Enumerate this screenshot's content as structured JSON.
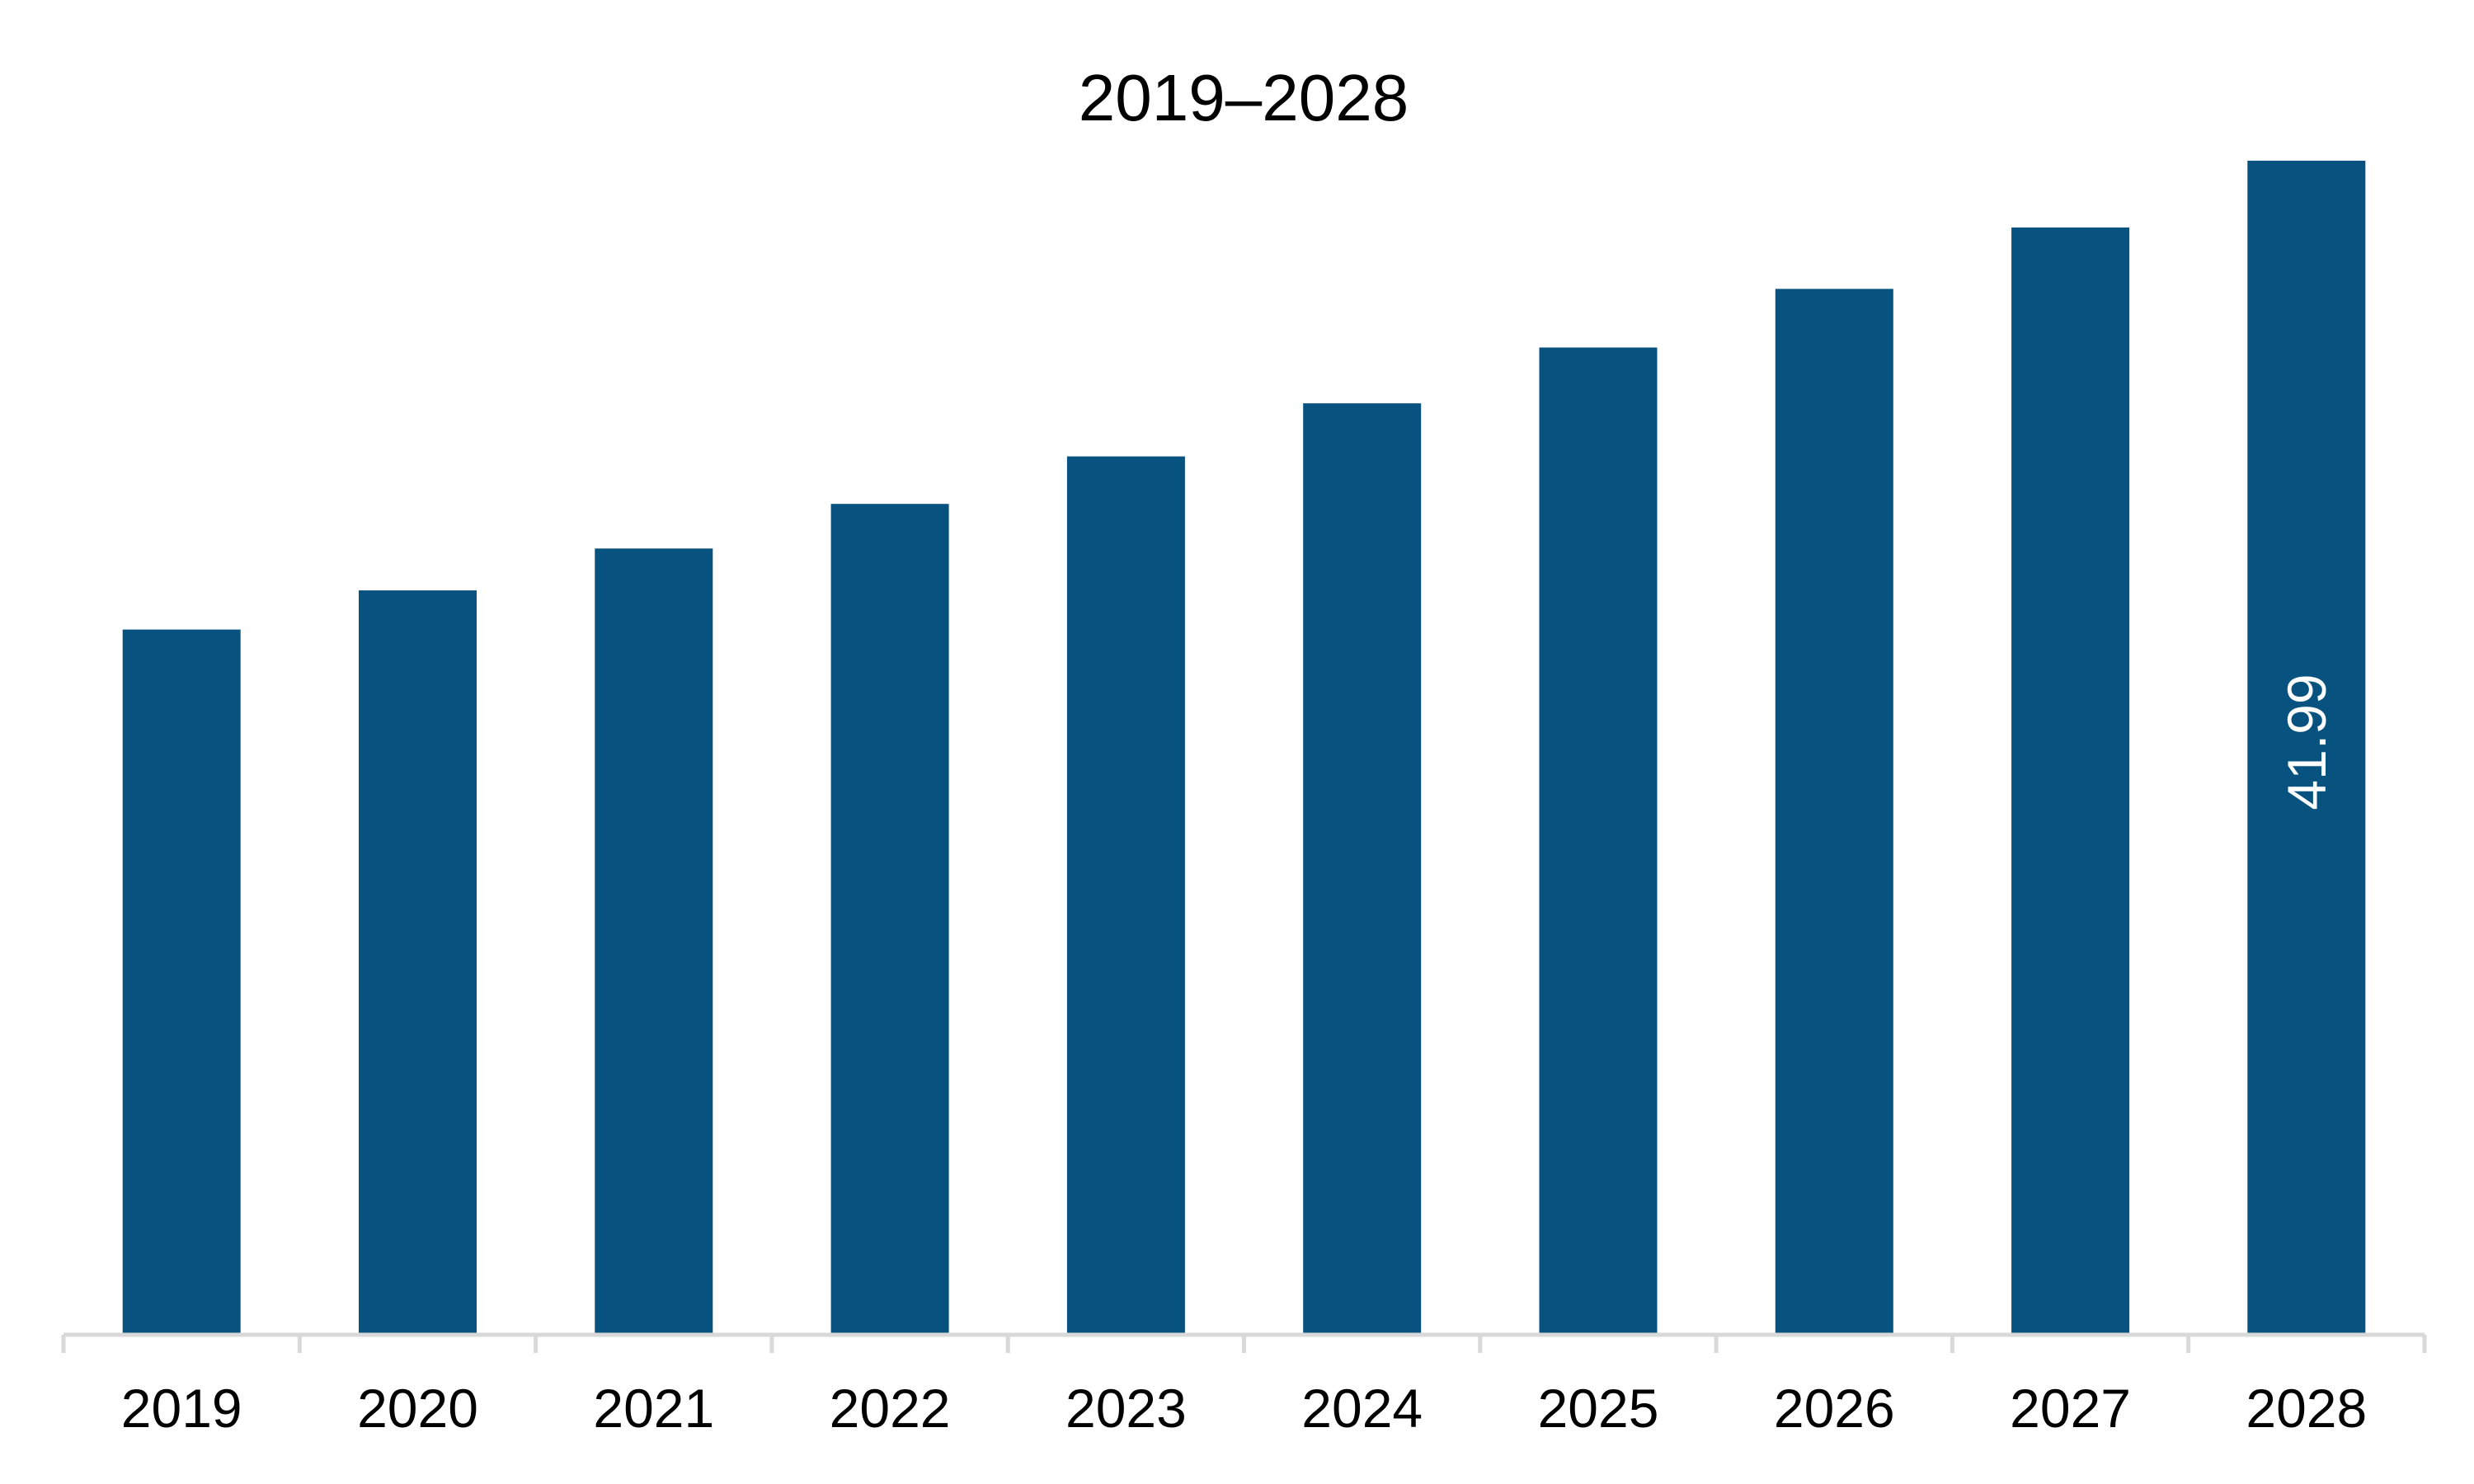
{
  "chart_data": {
    "type": "bar",
    "title": "2019–2028",
    "xlabel": "",
    "ylabel": "",
    "categories": [
      "2019",
      "2020",
      "2021",
      "2022",
      "2023",
      "2024",
      "2025",
      "2026",
      "2027",
      "2028"
    ],
    "values": [
      25.2,
      26.6,
      28.1,
      29.7,
      31.4,
      33.3,
      35.3,
      37.4,
      39.6,
      41.99
    ],
    "ylim": [
      0,
      45
    ],
    "grid": false,
    "legend": "none",
    "data_labels": [
      {
        "category": "2028",
        "text": "41.99",
        "orientation": "vertical"
      }
    ],
    "colors": {
      "bar": "#08527f",
      "axis": "#d9d9d9",
      "data_label": "#ffffff"
    }
  }
}
